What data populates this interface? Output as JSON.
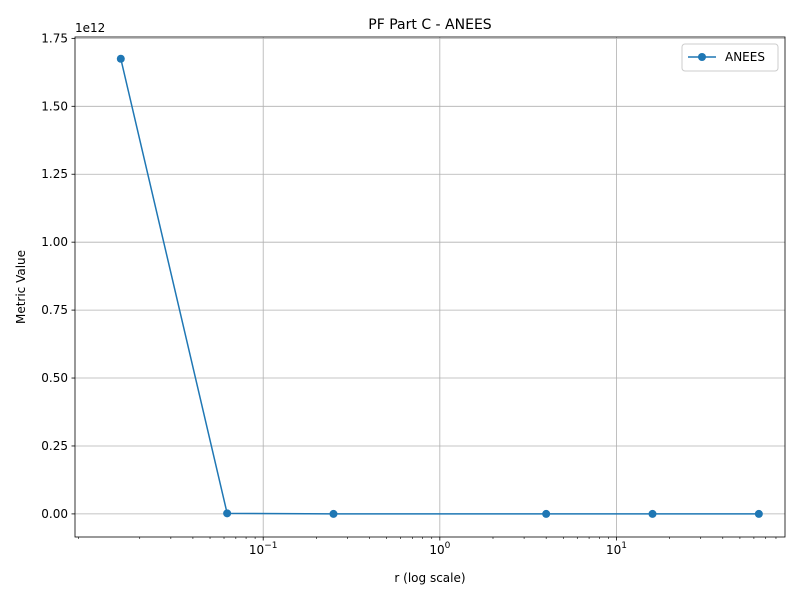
{
  "chart_data": {
    "type": "line",
    "title": "PF Part C - ANEES",
    "xlabel": "r (log scale)",
    "ylabel": "Metric Value",
    "xscale": "log",
    "xlim": [
      0.0086,
      90
    ],
    "ylim": [
      -0.085,
      1.755
    ],
    "y_offset_text": "1e12",
    "y_multiplier": 1000000000000.0,
    "grid": true,
    "legend_position": "upper right",
    "x_ticks": [
      {
        "value": 0.1,
        "base": "10",
        "exp": "−1"
      },
      {
        "value": 1,
        "base": "10",
        "exp": "0"
      },
      {
        "value": 10,
        "base": "10",
        "exp": "1"
      }
    ],
    "y_ticks": [
      {
        "value": 0.0,
        "label": "0.00"
      },
      {
        "value": 0.25,
        "label": "0.25"
      },
      {
        "value": 0.5,
        "label": "0.50"
      },
      {
        "value": 0.75,
        "label": "0.75"
      },
      {
        "value": 1.0,
        "label": "1.00"
      },
      {
        "value": 1.25,
        "label": "1.25"
      },
      {
        "value": 1.5,
        "label": "1.50"
      },
      {
        "value": 1.75,
        "label": "1.75"
      }
    ],
    "series": [
      {
        "name": "ANEES",
        "color": "#1f77b4",
        "x": [
          0.015625,
          0.0625,
          0.25,
          4,
          16,
          64
        ],
        "y": [
          1.675,
          0.002,
          0.0,
          0.0,
          0.0,
          0.0
        ]
      }
    ]
  }
}
